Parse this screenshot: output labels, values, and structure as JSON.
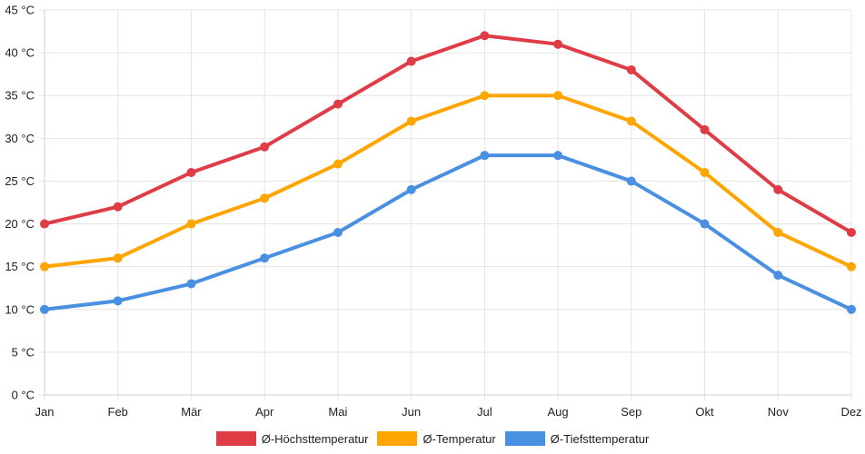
{
  "chart_data": {
    "type": "line",
    "title": "",
    "xlabel": "",
    "ylabel": "",
    "categories": [
      "Jan",
      "Feb",
      "Mär",
      "Apr",
      "Mai",
      "Jun",
      "Jul",
      "Aug",
      "Sep",
      "Okt",
      "Nov",
      "Dez"
    ],
    "ylim": [
      0,
      45
    ],
    "ytick_step": 5,
    "ytick_labels": [
      "0 °C",
      "5 °C",
      "10 °C",
      "15 °C",
      "20 °C",
      "25 °C",
      "30 °C",
      "35 °C",
      "40 °C",
      "45 °C"
    ],
    "grid": true,
    "legend_position": "bottom",
    "series": [
      {
        "name": "Ø-Höchsttemperatur",
        "color": "#e03c46",
        "values": [
          20,
          22,
          26,
          29,
          34,
          39,
          42,
          41,
          38,
          31,
          24,
          19
        ]
      },
      {
        "name": "Ø-Temperatur",
        "color": "#ffa500",
        "values": [
          15,
          16,
          20,
          23,
          27,
          32,
          35,
          35,
          32,
          26,
          19,
          15
        ]
      },
      {
        "name": "Ø-Tiefsttemperatur",
        "color": "#4a90e2",
        "values": [
          10,
          11,
          13,
          16,
          19,
          24,
          28,
          28,
          25,
          20,
          14,
          10
        ]
      }
    ]
  }
}
